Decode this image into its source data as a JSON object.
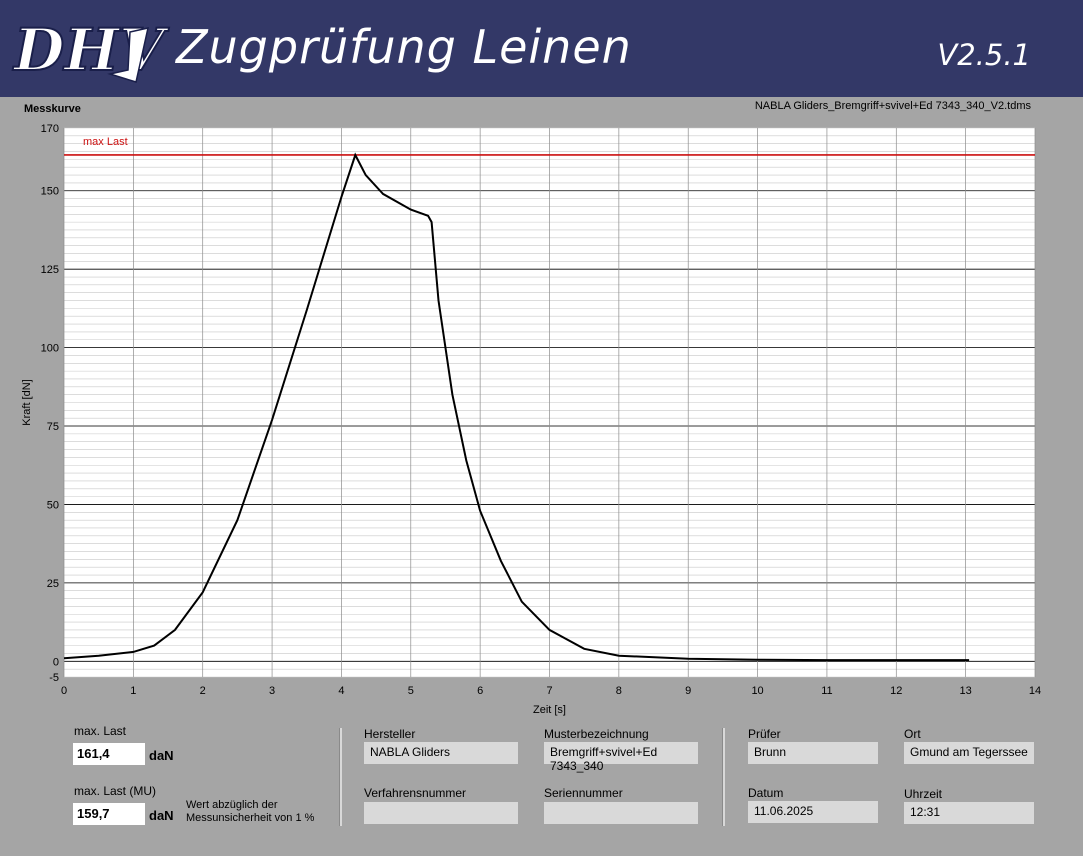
{
  "header": {
    "logo_text": "DHV",
    "title": "Zugprüfung Leinen",
    "version": "V2.5.1"
  },
  "panel": {
    "title": "Messkurve",
    "file_name": "NABLA Gliders_Bremgriff+svivel+Ed 7343_340_V2.tdms"
  },
  "colors": {
    "header_bg": "#333867",
    "max_line": "#cc1111",
    "curve": "#000000"
  },
  "chart_data": {
    "type": "line",
    "xlabel": "Zeit [s]",
    "ylabel": "Kraft [dN]",
    "xlim": [
      0,
      14
    ],
    "ylim": [
      -5,
      170
    ],
    "x_ticks": [
      0,
      1,
      2,
      3,
      4,
      5,
      6,
      7,
      8,
      9,
      10,
      11,
      12,
      13,
      14
    ],
    "y_ticks": [
      -5,
      0,
      25,
      50,
      75,
      100,
      125,
      150,
      170
    ],
    "grid": true,
    "max_line": {
      "label": "max Last",
      "value": 161.4
    },
    "series": [
      {
        "x": [
          0,
          0.5,
          1,
          1.3,
          1.6,
          2,
          2.5,
          3,
          3.5,
          4,
          4.2,
          4.35,
          4.6,
          5,
          5.25,
          5.3,
          5.4,
          5.6,
          5.8,
          6,
          6.3,
          6.6,
          7,
          7.5,
          8,
          9,
          10,
          11,
          12,
          13.05
        ],
        "y": [
          1,
          1.8,
          3,
          5,
          10,
          22,
          45,
          77,
          112,
          148,
          161.4,
          155,
          149,
          144,
          142,
          140,
          115,
          85,
          64,
          48,
          32,
          19,
          10,
          4,
          1.8,
          0.8,
          0.5,
          0.4,
          0.4,
          0.4
        ]
      }
    ]
  },
  "results": {
    "max_last_label": "max. Last",
    "max_last_value": "161,4",
    "max_last_unit": "daN",
    "max_last_mu_label": "max. Last (MU)",
    "max_last_mu_value": "159,7",
    "max_last_mu_unit": "daN",
    "note": "Wert abzüglich der Messunsicherheit von 1 %"
  },
  "info": {
    "hersteller_label": "Hersteller",
    "hersteller_value": "NABLA Gliders",
    "muster_label": "Musterbezeichnung",
    "muster_value": "Bremgriff+svivel+Ed 7343_340",
    "verfahren_label": "Verfahrensnummer",
    "verfahren_value": "",
    "serien_label": "Seriennummer",
    "serien_value": "",
    "pruefer_label": "Prüfer",
    "pruefer_value": "Brunn",
    "ort_label": "Ort",
    "ort_value": "Gmund am Tegerssee",
    "datum_label": "Datum",
    "datum_value": "11.06.2025",
    "uhrzeit_label": "Uhrzeit",
    "uhrzeit_value": "12:31"
  }
}
